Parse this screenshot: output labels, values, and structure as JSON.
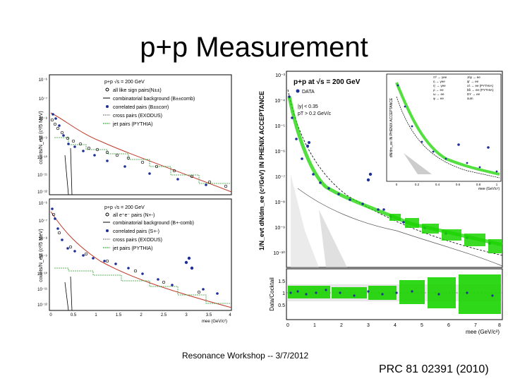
{
  "slide": {
    "title": "p+p Measurement",
    "footer": "Resonance Workshop -- 3/7/2012",
    "citation": "PRC 81 02391 (2010)"
  },
  "left_figure": {
    "top_panel": {
      "ylabel": "counts/N_evt (c²/5 MeV)",
      "yticks": [
        "10⁻⁶",
        "10⁻⁷",
        "10⁻⁸",
        "10⁻⁹",
        "10⁻¹⁰",
        "10⁻¹¹",
        "10⁻¹²"
      ],
      "legend_title": "p+p √s = 200 GeV",
      "legend": [
        "all like sign pairs(N±±)",
        "combinatorial background (B±±comb)",
        "correlated pairs (B±±corr)",
        "cross pairs (EXODUS)",
        "jet pairs (PYTHIA)"
      ]
    },
    "bottom_panel": {
      "ylabel": "counts/N_evt (c²/5 MeV)",
      "yticks": [
        "10⁻⁶",
        "10⁻⁷",
        "10⁻⁸",
        "10⁻⁹",
        "10⁻¹⁰",
        "10⁻¹¹",
        "10⁻¹²"
      ],
      "legend_title": "p+p √s = 200 GeV",
      "legend": [
        "all e⁺e⁻ pairs (N+-)",
        "combinatorial background (B+-comb)",
        "correlated pairs (S+-)",
        "cross pairs (EXODUS)",
        "jet pairs (PYTHIA)"
      ],
      "xticks": [
        "0",
        "0.5",
        "1",
        "1.5",
        "2",
        "2.5",
        "3",
        "3.5",
        "4"
      ],
      "xlabel": "mee (GeV/c²)"
    }
  },
  "right_figure": {
    "ylabel": "1/N_evt dN/dm_ee (c²/GeV) IN PHENIX ACCEPTANCE",
    "yticks": [
      "10⁻³",
      "10⁻⁴",
      "10⁻⁵",
      "10⁻⁶",
      "10⁻⁷",
      "10⁻⁸",
      "10⁻⁹",
      "10⁻¹⁰"
    ],
    "legend_title": "p+p at √s = 200 GeV",
    "legend": [
      "DATA",
      "|y| < 0.35",
      "pT > 0.2 GeV/c"
    ],
    "inset": {
      "ylabel": "dN/dm_ee IN PHENIX ACCEPTANCE",
      "xticks": [
        "0",
        "0.2",
        "0.4",
        "0.6",
        "0.8",
        "1"
      ],
      "xlabel": "mee (GeV/c²)",
      "legend": [
        "π⁰ → γee",
        "η → γee",
        "η' → γee",
        "ρ → ee",
        "ω → ee",
        "φ → ee",
        "J/ψ → ee",
        "ψ' → ee",
        "cc̄ → ee (PYTHIA)",
        "bb̄ → ee (PYTHIA)",
        "DY → ee",
        "sum"
      ]
    },
    "ratio_panel": {
      "ylabel": "Data/Cocktail",
      "yticks": [
        "1.5",
        "1",
        "0.5"
      ],
      "xticks": [
        "0",
        "1",
        "2",
        "3",
        "4",
        "5",
        "6",
        "7",
        "8"
      ],
      "xlabel": "mee (GeV/c²)"
    }
  }
}
